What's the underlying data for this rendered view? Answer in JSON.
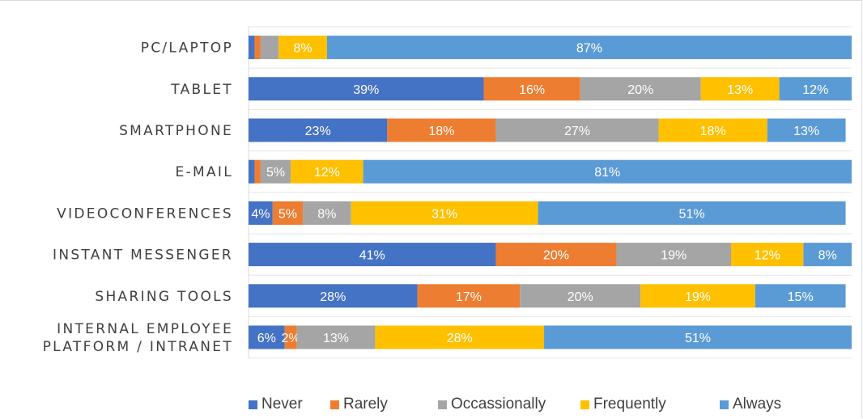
{
  "chart_data": {
    "type": "bar",
    "orientation": "horizontal",
    "stacked": true,
    "categories": [
      [
        "PC/LAPTOP"
      ],
      [
        "TABLET"
      ],
      [
        "SMARTPHONE"
      ],
      [
        "E-MAIL"
      ],
      [
        "VIDEOCONFERENCES"
      ],
      [
        "INSTANT MESSENGER"
      ],
      [
        "SHARING TOOLS"
      ],
      [
        "INTERNAL EMPLOYEE",
        "PLATFORM / INTRANET"
      ]
    ],
    "series": [
      {
        "name": "Never",
        "color": "#4472c4",
        "values": [
          1,
          39,
          23,
          1,
          4,
          41,
          28,
          6
        ],
        "labels": [
          "",
          "39%",
          "23%",
          "",
          "4%",
          "41%",
          "28%",
          "6%"
        ]
      },
      {
        "name": "Rarely",
        "color": "#ed7d31",
        "values": [
          1,
          16,
          18,
          1,
          5,
          20,
          17,
          2
        ],
        "labels": [
          "",
          "16%",
          "18%",
          "",
          "5%",
          "20%",
          "17%",
          "2%"
        ]
      },
      {
        "name": "Occassionally",
        "color": "#a5a5a5",
        "values": [
          3,
          20,
          27,
          5,
          8,
          19,
          20,
          13
        ],
        "labels": [
          "",
          "20%",
          "27%",
          "5%",
          "8%",
          "19%",
          "20%",
          "13%"
        ]
      },
      {
        "name": "Frequently",
        "color": "#ffc000",
        "values": [
          8,
          13,
          18,
          12,
          31,
          12,
          19,
          28
        ],
        "labels": [
          "8%",
          "13%",
          "18%",
          "12%",
          "31%",
          "12%",
          "19%",
          "28%"
        ]
      },
      {
        "name": "Always",
        "color": "#5b9bd5",
        "values": [
          87,
          12,
          13,
          81,
          51,
          8,
          15,
          51
        ],
        "labels": [
          "87%",
          "12%",
          "13%",
          "81%",
          "51%",
          "8%",
          "15%",
          "51%"
        ]
      }
    ],
    "xlim": [
      0,
      100
    ],
    "legend_position": "bottom",
    "grid": true
  }
}
